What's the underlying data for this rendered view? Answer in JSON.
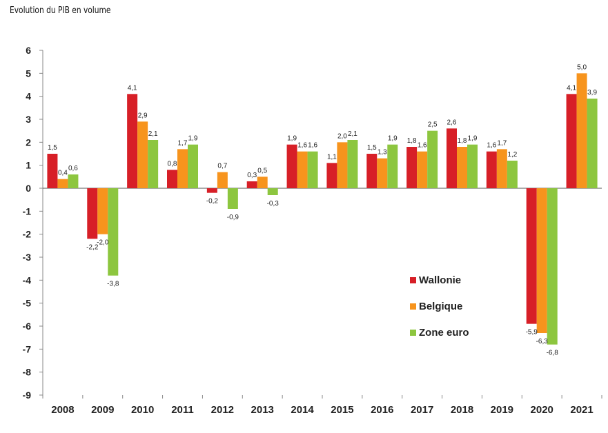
{
  "title": "Evolution du PIB en volume",
  "chart_data": {
    "type": "bar",
    "title": "Evolution du PIB en volume",
    "categories": [
      "2008",
      "2009",
      "2010",
      "2011",
      "2012",
      "2013",
      "2014",
      "2015",
      "2016",
      "2017",
      "2018",
      "2019",
      "2020",
      "2021"
    ],
    "series": [
      {
        "name": "Wallonie",
        "color": "#d71f27",
        "values": [
          1.5,
          -2.2,
          4.1,
          0.8,
          -0.2,
          0.3,
          1.9,
          1.1,
          1.5,
          1.8,
          2.6,
          1.6,
          -5.9,
          4.1
        ],
        "labels": [
          "1,5",
          "-2,2",
          "4,1",
          "0,8",
          "-0,2",
          "0,3",
          "1,9",
          "1,1",
          "1,5",
          "1,8",
          "2,6",
          "1,6",
          "-5,9",
          "4,1"
        ]
      },
      {
        "name": "Belgique",
        "color": "#f7941d",
        "values": [
          0.4,
          -2.0,
          2.9,
          1.7,
          0.7,
          0.5,
          1.6,
          2.0,
          1.3,
          1.6,
          1.8,
          1.7,
          -6.3,
          5.0
        ],
        "labels": [
          "0,4",
          "-2,0",
          "2,9",
          "1,7",
          "0,7",
          "0,5",
          "1,6",
          "2,0",
          "1,3",
          "1,6",
          "1,8",
          "1,7",
          "-6,3",
          "5,0"
        ]
      },
      {
        "name": "Zone euro",
        "color": "#8dc63f",
        "values": [
          0.6,
          -3.8,
          2.1,
          1.9,
          -0.9,
          -0.3,
          1.6,
          2.1,
          1.9,
          2.5,
          1.9,
          1.2,
          -6.8,
          3.9
        ],
        "labels": [
          "0,6",
          "-3,8",
          "2,1",
          "1,9",
          "-0,9",
          "-0,3",
          "1,6",
          "2,1",
          "1,9",
          "2,5",
          "1,9",
          "1,2",
          "-6,8",
          "3,9"
        ]
      }
    ],
    "ylim": [
      -9,
      6
    ],
    "yticks": [
      6,
      5,
      4,
      3,
      2,
      1,
      0,
      -1,
      -2,
      -3,
      -4,
      -5,
      -6,
      -7,
      -8,
      -9
    ],
    "xlabel": "",
    "ylabel": "",
    "grid": false,
    "legend_position": "lower-right"
  }
}
